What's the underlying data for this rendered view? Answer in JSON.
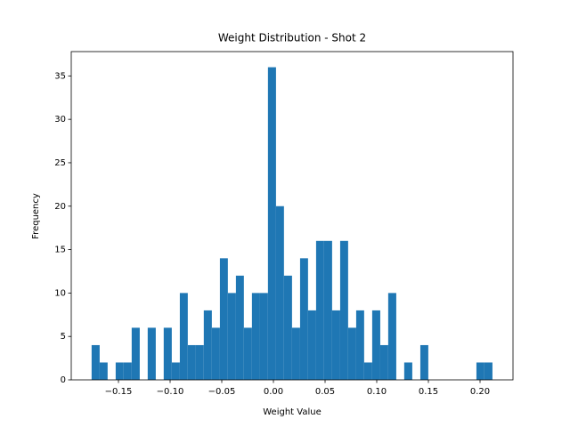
{
  "chart_data": {
    "type": "histogram",
    "title": "Weight Distribution - Shot 2",
    "x_label": "Weight Value",
    "y_label": "Frequency",
    "color": "#1f77b4",
    "bins": [
      -0.176,
      -0.1682,
      -0.1605,
      -0.1527,
      -0.145,
      -0.1372,
      -0.1294,
      -0.1217,
      -0.1139,
      -0.1062,
      -0.0984,
      -0.0906,
      -0.0829,
      -0.0751,
      -0.0674,
      -0.0596,
      -0.0518,
      -0.0441,
      -0.0363,
      -0.0286,
      -0.0208,
      -0.013,
      -0.0053,
      0.0025,
      0.0102,
      0.018,
      0.0258,
      0.0335,
      0.0413,
      0.049,
      0.0568,
      0.0646,
      0.0723,
      0.0801,
      0.0878,
      0.0956,
      0.1034,
      0.1111,
      0.1189,
      0.1266,
      0.1344,
      0.1422,
      0.1499,
      0.1577,
      0.1654,
      0.1732,
      0.181,
      0.1887,
      0.1965,
      0.2042,
      0.212
    ],
    "counts": [
      4,
      2,
      0,
      2,
      2,
      6,
      0,
      6,
      0,
      6,
      2,
      10,
      4,
      4,
      8,
      6,
      14,
      10,
      12,
      6,
      10,
      10,
      36,
      20,
      12,
      6,
      14,
      8,
      16,
      16,
      8,
      16,
      6,
      8,
      2,
      8,
      4,
      10,
      0,
      2,
      0,
      4,
      0,
      0,
      0,
      0,
      0,
      0,
      2,
      2
    ],
    "xlim": [
      -0.1957,
      0.2319
    ],
    "ylim": [
      0,
      37.8
    ],
    "xticks": [
      {
        "value": -0.15,
        "label": "−0.15"
      },
      {
        "value": -0.1,
        "label": "−0.10"
      },
      {
        "value": -0.05,
        "label": "−0.05"
      },
      {
        "value": 0,
        "label": "0.00"
      },
      {
        "value": 0.05,
        "label": "0.05"
      },
      {
        "value": 0.1,
        "label": "0.10"
      },
      {
        "value": 0.15,
        "label": "0.15"
      },
      {
        "value": 0.2,
        "label": "0.20"
      }
    ],
    "yticks": [
      0,
      5,
      10,
      15,
      20,
      25,
      30,
      35
    ],
    "grid": false
  }
}
